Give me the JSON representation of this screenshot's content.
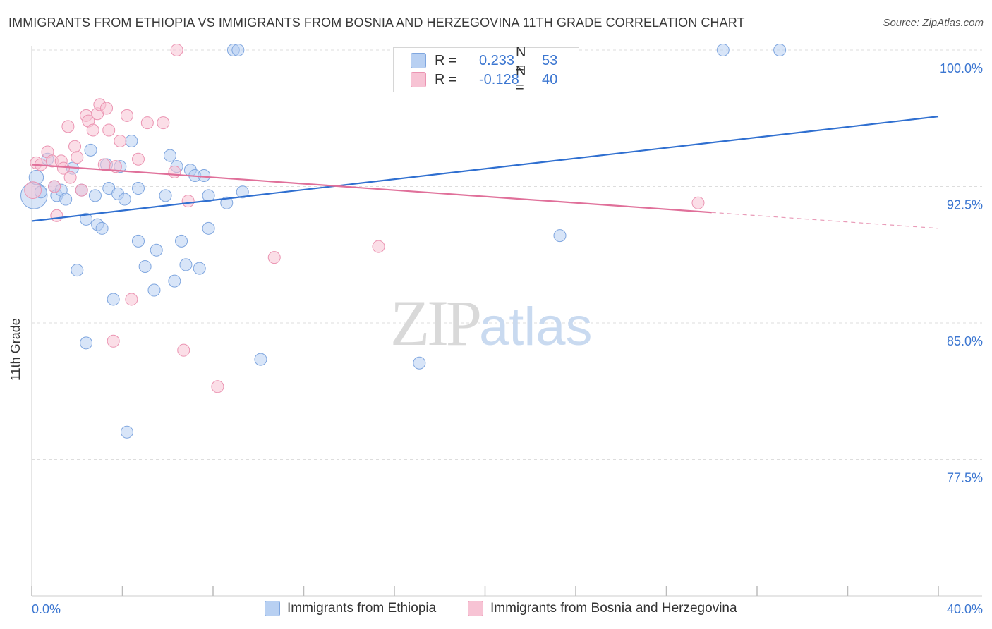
{
  "title": "IMMIGRANTS FROM ETHIOPIA VS IMMIGRANTS FROM BOSNIA AND HERZEGOVINA 11TH GRADE CORRELATION CHART",
  "source": "Source: ZipAtlas.com",
  "watermark": {
    "zip": "ZIP",
    "atlas": "atlas"
  },
  "legend": {
    "r_label": "R =",
    "n_label": "N =",
    "ethiopia": {
      "r": "0.233",
      "n": "53"
    },
    "bosnia": {
      "r": "-0.128",
      "n": "40"
    }
  },
  "colors": {
    "ethiopia_fill": "#b8d0f2",
    "ethiopia_stroke": "#7fa6df",
    "ethiopia_line": "#2f6fd0",
    "bosnia_fill": "#f7c3d4",
    "bosnia_stroke": "#eb94b2",
    "bosnia_line": "#e0709a",
    "axis_text": "#3b76d1",
    "grid": "#dddddd"
  },
  "chart_data": {
    "type": "scatter",
    "title": "IMMIGRANTS FROM ETHIOPIA VS IMMIGRANTS FROM BOSNIA AND HERZEGOVINA 11TH GRADE CORRELATION CHART",
    "xlabel": "",
    "ylabel": "11th Grade",
    "xlim": [
      0,
      40
    ],
    "ylim": [
      70.0,
      101.2
    ],
    "x_tick_labels": [
      "0.0%",
      "40.0%"
    ],
    "y_ticks": [
      77.5,
      85.0,
      92.5,
      100.0
    ],
    "y_tick_labels": [
      "77.5%",
      "85.0%",
      "92.5%",
      "100.0%"
    ],
    "grid": true,
    "legend_position": "top-center",
    "series": [
      {
        "name": "Immigrants from Ethiopia",
        "r": 0.233,
        "n": 53,
        "trend": {
          "x": [
            0,
            40
          ],
          "y": [
            90.6,
            96.35
          ],
          "solid_until": 40
        },
        "points": [
          [
            0.1,
            92.0,
            22
          ],
          [
            0.2,
            93.0,
            12
          ],
          [
            0.4,
            92.2,
            10
          ],
          [
            0.7,
            94.0,
            10
          ],
          [
            1.0,
            92.5,
            10
          ],
          [
            1.1,
            92.0,
            10
          ],
          [
            1.3,
            92.3,
            10
          ],
          [
            1.5,
            91.8,
            10
          ],
          [
            1.8,
            93.5,
            10
          ],
          [
            2.0,
            87.9,
            10
          ],
          [
            2.2,
            92.3,
            10
          ],
          [
            2.4,
            83.9,
            10
          ],
          [
            2.4,
            90.7,
            10
          ],
          [
            2.6,
            94.5,
            10
          ],
          [
            2.8,
            92.0,
            10
          ],
          [
            2.9,
            90.4,
            10
          ],
          [
            3.1,
            90.2,
            10
          ],
          [
            3.3,
            93.7,
            10
          ],
          [
            3.4,
            92.4,
            10
          ],
          [
            3.6,
            86.3,
            10
          ],
          [
            3.8,
            92.1,
            10
          ],
          [
            3.9,
            93.6,
            10
          ],
          [
            4.1,
            91.8,
            10
          ],
          [
            4.2,
            79.0,
            10
          ],
          [
            4.4,
            95.0,
            10
          ],
          [
            4.7,
            92.4,
            10
          ],
          [
            4.7,
            89.5,
            10
          ],
          [
            5.0,
            88.1,
            10
          ],
          [
            5.4,
            86.8,
            10
          ],
          [
            5.5,
            89.0,
            10
          ],
          [
            5.9,
            92.0,
            10
          ],
          [
            6.1,
            94.2,
            10
          ],
          [
            6.3,
            87.3,
            10
          ],
          [
            6.4,
            93.6,
            10
          ],
          [
            6.6,
            89.5,
            10
          ],
          [
            6.8,
            88.2,
            10
          ],
          [
            7.0,
            93.4,
            10
          ],
          [
            7.2,
            93.1,
            10
          ],
          [
            7.4,
            88.0,
            10
          ],
          [
            7.6,
            93.1,
            10
          ],
          [
            7.8,
            92.0,
            10
          ],
          [
            7.8,
            90.2,
            10
          ],
          [
            8.6,
            91.6,
            10
          ],
          [
            8.9,
            100.0,
            10
          ],
          [
            9.1,
            100.0,
            10
          ],
          [
            9.3,
            92.2,
            10
          ],
          [
            10.1,
            83.0,
            10
          ],
          [
            17.1,
            82.8,
            10
          ],
          [
            23.3,
            89.8,
            10
          ],
          [
            30.5,
            100.0,
            10
          ],
          [
            33.0,
            100.0,
            10
          ]
        ]
      },
      {
        "name": "Immigrants from Bosnia and Herzegovina",
        "r": -0.128,
        "n": 40,
        "trend": {
          "x": [
            0,
            40
          ],
          "y": [
            93.7,
            90.2
          ],
          "solid_until": 30.0
        },
        "points": [
          [
            0.05,
            92.3,
            14
          ],
          [
            0.2,
            93.8,
            10
          ],
          [
            0.4,
            93.7,
            10
          ],
          [
            0.7,
            94.4,
            10
          ],
          [
            0.9,
            93.9,
            10
          ],
          [
            1.0,
            92.5,
            10
          ],
          [
            1.1,
            90.9,
            10
          ],
          [
            1.3,
            93.9,
            10
          ],
          [
            1.4,
            93.5,
            10
          ],
          [
            1.6,
            95.8,
            10
          ],
          [
            1.7,
            93.0,
            10
          ],
          [
            1.9,
            94.7,
            10
          ],
          [
            2.0,
            94.1,
            10
          ],
          [
            2.2,
            92.3,
            10
          ],
          [
            2.4,
            96.4,
            10
          ],
          [
            2.5,
            96.1,
            10
          ],
          [
            2.7,
            95.6,
            10
          ],
          [
            2.9,
            96.5,
            10
          ],
          [
            3.0,
            97.0,
            10
          ],
          [
            3.2,
            93.7,
            10
          ],
          [
            3.3,
            96.8,
            10
          ],
          [
            3.4,
            95.6,
            10
          ],
          [
            3.6,
            84.0,
            10
          ],
          [
            3.7,
            93.6,
            10
          ],
          [
            3.9,
            95.0,
            10
          ],
          [
            4.2,
            96.4,
            10
          ],
          [
            4.4,
            86.3,
            10
          ],
          [
            4.7,
            94.0,
            10
          ],
          [
            5.1,
            96.0,
            10
          ],
          [
            5.8,
            96.0,
            10
          ],
          [
            6.3,
            93.3,
            10
          ],
          [
            6.4,
            100.0,
            10
          ],
          [
            6.7,
            83.5,
            10
          ],
          [
            6.9,
            91.7,
            10
          ],
          [
            8.2,
            81.5,
            10
          ],
          [
            10.7,
            88.6,
            10
          ],
          [
            15.3,
            89.2,
            10
          ],
          [
            29.4,
            91.6,
            10
          ]
        ]
      }
    ]
  },
  "bottom_legend": {
    "ethiopia": "Immigrants from Ethiopia",
    "bosnia": "Immigrants from Bosnia and Herzegovina"
  }
}
